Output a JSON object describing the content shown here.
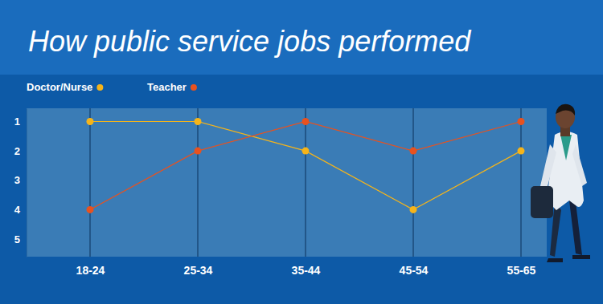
{
  "chart_data": {
    "type": "line",
    "title": "How public service jobs performed",
    "categories": [
      "18-24",
      "25-34",
      "35-44",
      "45-54",
      "55-65"
    ],
    "series": [
      {
        "name": "Doctor/Nurse",
        "color": "#f5b41a",
        "values": [
          1,
          1,
          2,
          4,
          2
        ],
        "marker": "circle"
      },
      {
        "name": "Teacher",
        "color": "#e8521f",
        "values": [
          4,
          2,
          1,
          2,
          1
        ],
        "marker": "circle"
      }
    ],
    "ylim": [
      0.55,
      5.6
    ],
    "yticks": [
      1,
      2,
      3,
      4,
      5
    ],
    "grid": true,
    "legend": "top-left"
  }
}
